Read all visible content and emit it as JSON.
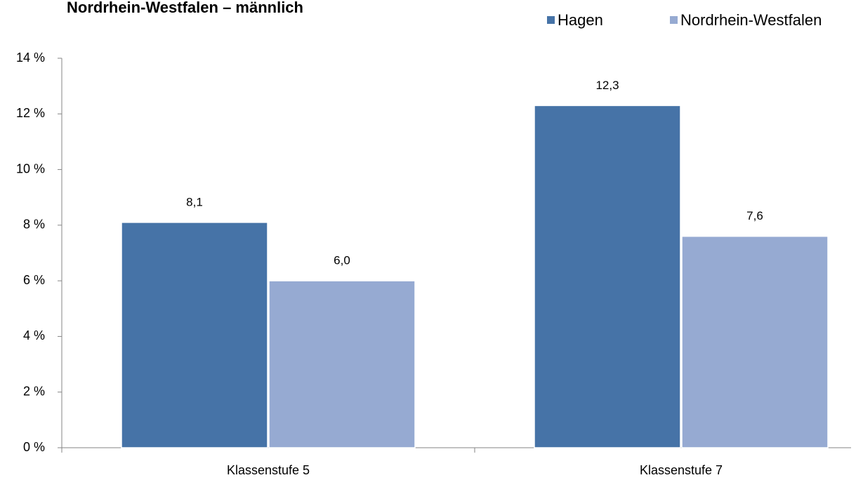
{
  "chart_data": {
    "type": "bar",
    "title": "Nordrhein-Westfalen – männlich",
    "categories": [
      "Klassenstufe 5",
      "Klassenstufe 7"
    ],
    "series": [
      {
        "name": "Hagen",
        "color": "#4673a7",
        "values": [
          8.1,
          12.3
        ],
        "value_labels": [
          "8,1",
          "12,3"
        ]
      },
      {
        "name": "Nordrhein-Westfalen",
        "color": "#96aad2",
        "values": [
          6.0,
          7.6
        ],
        "value_labels": [
          "6,0",
          "7,6"
        ]
      }
    ],
    "ylim": [
      0,
      14
    ],
    "yticks": [
      {
        "value": 0,
        "label": "0 %"
      },
      {
        "value": 2,
        "label": "2 %"
      },
      {
        "value": 4,
        "label": "4 %"
      },
      {
        "value": 6,
        "label": "6 %"
      },
      {
        "value": 8,
        "label": "8 %"
      },
      {
        "value": 10,
        "label": "10 %"
      },
      {
        "value": 12,
        "label": "12 %"
      },
      {
        "value": 14,
        "label": "14 %"
      }
    ],
    "legend": "top-right"
  }
}
